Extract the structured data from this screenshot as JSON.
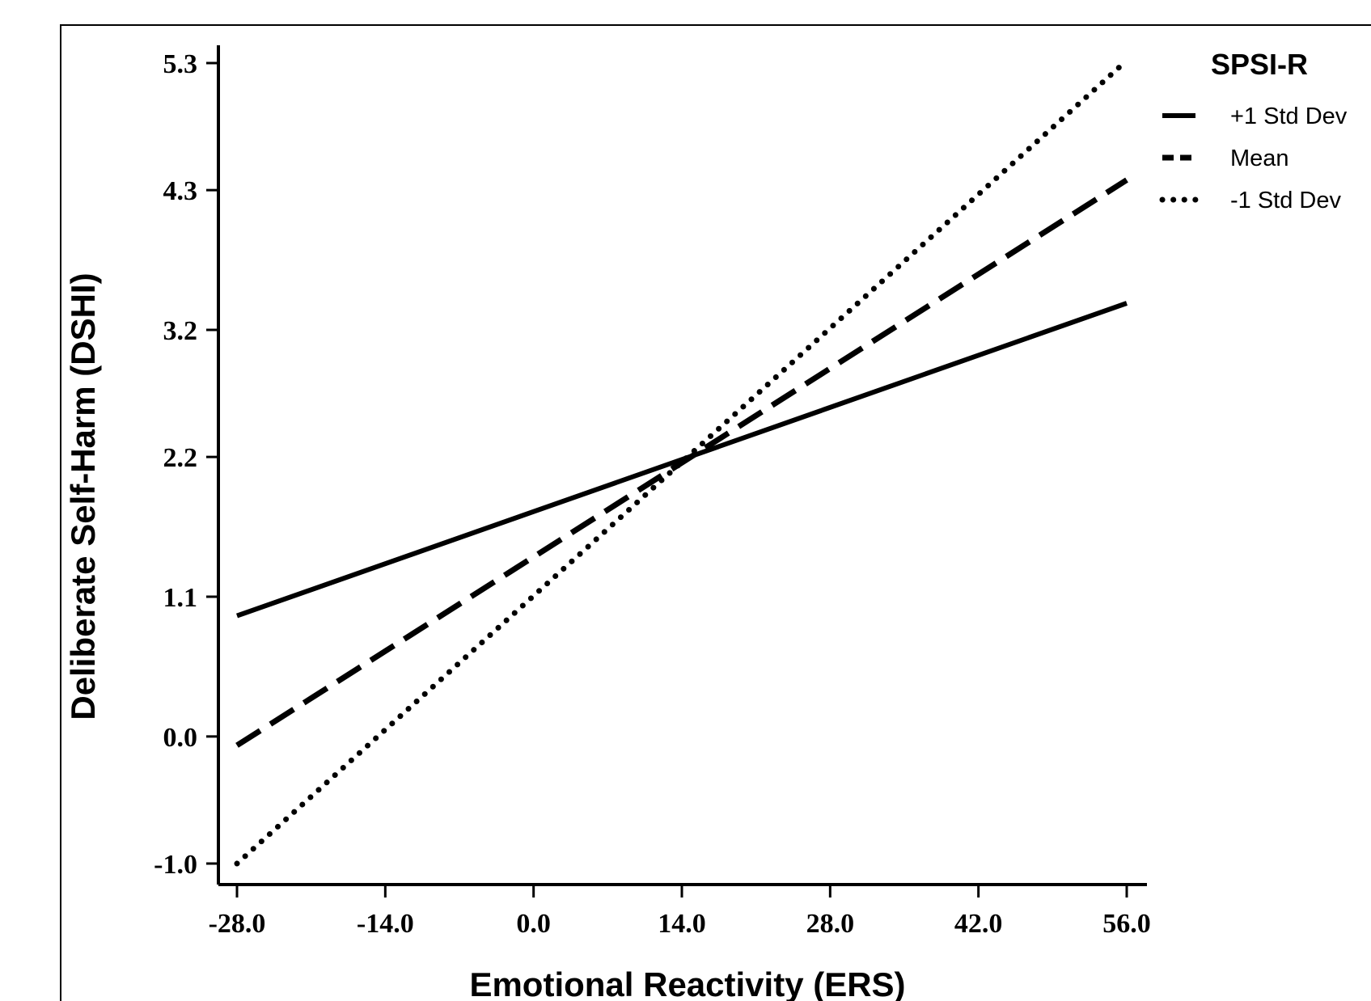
{
  "chart_data": {
    "type": "line",
    "xlabel": "Emotional Reactivity (ERS)",
    "ylabel": "Deliberate Self-Harm (DSHI)",
    "x": [
      -28.0,
      56.0
    ],
    "xticks": [
      "-28.0",
      "-14.0",
      "0.0",
      "14.0",
      "28.0",
      "42.0",
      "56.0"
    ],
    "xtick_values": [
      -28,
      -14,
      0,
      14,
      28,
      42,
      56
    ],
    "yticks": [
      "-1.0",
      "0.0",
      "1.1",
      "2.2",
      "3.2",
      "4.3",
      "5.3"
    ],
    "ytick_values": [
      -1.0,
      0.0,
      1.1,
      2.2,
      3.2,
      4.3,
      5.3
    ],
    "xlim": [
      -28.0,
      56.0
    ],
    "ylim": [
      -1.0,
      5.3
    ],
    "grid": false,
    "legend": {
      "title": "SPSI-R",
      "position": "top-right"
    },
    "series": [
      {
        "name": "+1 Std Dev",
        "style": "solid",
        "values": [
          0.95,
          3.41
        ]
      },
      {
        "name": "Mean",
        "style": "dashed",
        "values": [
          -0.07,
          4.38
        ]
      },
      {
        "name": "-1 Std Dev",
        "style": "dotted",
        "values": [
          -1.0,
          5.32
        ]
      }
    ],
    "colors": {
      "line": "#000000",
      "background": "#ffffff",
      "frame": "#000000"
    }
  }
}
